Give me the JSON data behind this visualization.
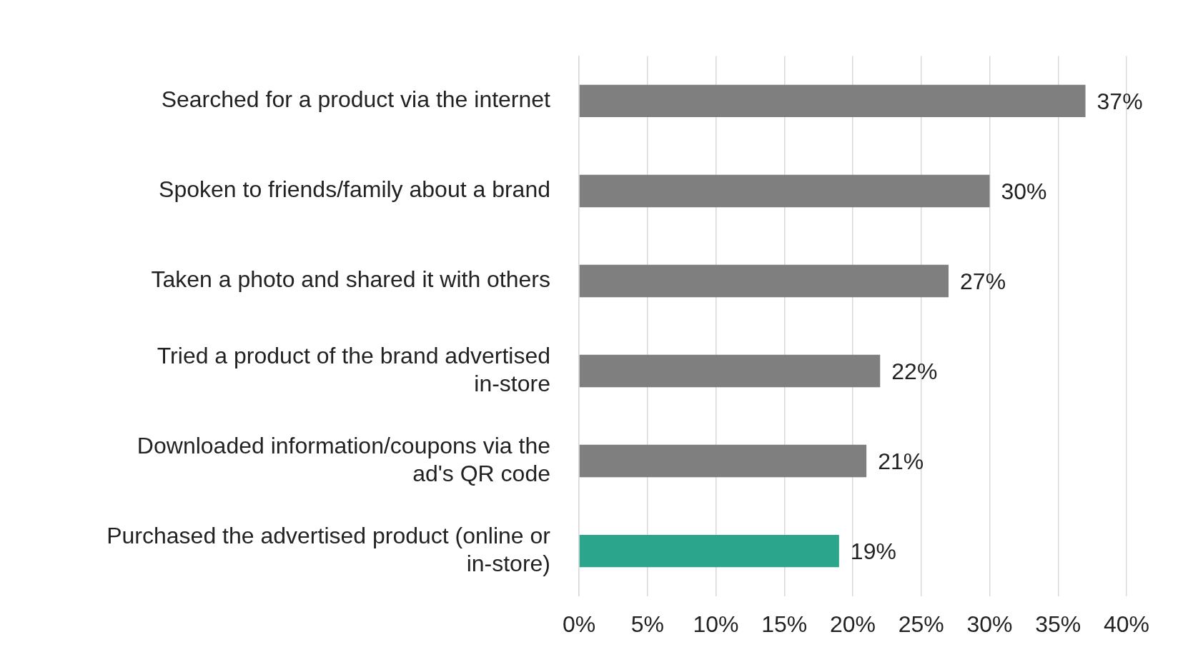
{
  "chart_data": {
    "type": "bar",
    "orientation": "horizontal",
    "categories": [
      "Searched for a product via the internet",
      "Spoken to friends/family about a brand",
      "Taken a photo and shared it with others",
      "Tried a product of the brand advertised in-store",
      "Downloaded information/coupons via the ad's QR code",
      "Purchased the advertised product (online or in-store)"
    ],
    "values": [
      37,
      30,
      27,
      22,
      21,
      19
    ],
    "colors": [
      "#7f7f7f",
      "#7f7f7f",
      "#7f7f7f",
      "#7f7f7f",
      "#7f7f7f",
      "#2ca58d"
    ],
    "value_labels": [
      "37%",
      "30%",
      "27%",
      "22%",
      "21%",
      "19%"
    ],
    "xlim": [
      0,
      40
    ],
    "xticks": [
      {
        "value": 0,
        "label": "0%"
      },
      {
        "value": 5,
        "label": "5%"
      },
      {
        "value": 10,
        "label": "10%"
      },
      {
        "value": 15,
        "label": "15%"
      },
      {
        "value": 20,
        "label": "20%"
      },
      {
        "value": 25,
        "label": "25%"
      },
      {
        "value": 30,
        "label": "30%"
      },
      {
        "value": 35,
        "label": "35%"
      },
      {
        "value": 40,
        "label": "40%"
      }
    ],
    "grid": "x",
    "legend": false
  }
}
